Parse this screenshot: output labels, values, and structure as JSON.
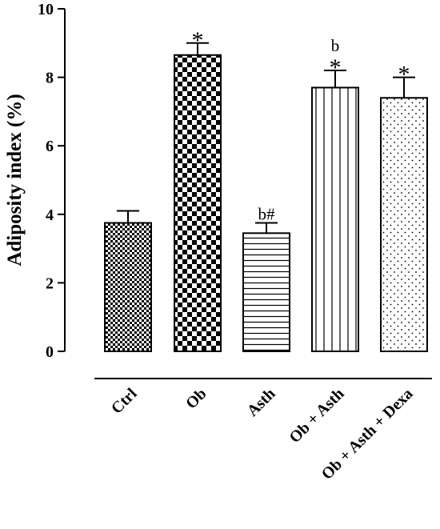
{
  "chart_data": {
    "type": "bar",
    "ylabel": "Adiposity index (%)",
    "xlabel": "",
    "ylim": [
      0,
      10
    ],
    "yticks": [
      "0",
      "2",
      "4",
      "6",
      "8",
      "10"
    ],
    "categories": [
      "Ctrl",
      "Ob",
      "Asth",
      "Ob + Asth",
      "Ob + Asth + Dexa"
    ],
    "values": [
      3.75,
      8.65,
      3.45,
      7.7,
      7.4
    ],
    "errors": [
      0.35,
      0.35,
      0.3,
      0.5,
      0.6
    ],
    "patterns": [
      "fine-checker",
      "coarse-checker",
      "horizontal-lines",
      "vertical-lines",
      "dots"
    ],
    "annotations": [
      {
        "category": "Ob",
        "lines": [
          "*"
        ]
      },
      {
        "category": "Asth",
        "lines": [
          "b#"
        ]
      },
      {
        "category": "Ob + Asth",
        "lines": [
          "b",
          "*"
        ]
      },
      {
        "category": "Ob + Asth + Dexa",
        "lines": [
          "*"
        ]
      }
    ],
    "grid": false
  }
}
